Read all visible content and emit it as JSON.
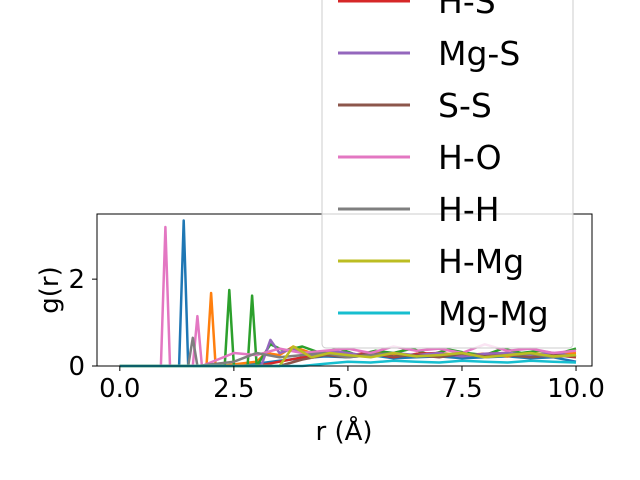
{
  "chart_data": {
    "type": "line",
    "xlabel": "r (Å)",
    "ylabel": "g(r)",
    "xlim": [
      -0.5,
      10.35
    ],
    "ylim": [
      0,
      3.5
    ],
    "xticks": [
      0.0,
      2.5,
      5.0,
      7.5,
      10.0
    ],
    "xtick_labels": [
      "0.0",
      "2.5",
      "5.0",
      "7.5",
      "10.0"
    ],
    "yticks": [
      0,
      2
    ],
    "ytick_labels": [
      "0",
      "2"
    ],
    "grid": false,
    "legend_placement": "top-right",
    "series": [
      {
        "name": "",
        "color": "#1f77b4",
        "in_legend": false,
        "x": [
          0.0,
          1.2,
          1.3,
          1.4,
          1.5,
          1.6,
          2.0,
          3.0,
          3.5,
          4.0,
          4.5,
          5.0,
          5.5,
          6.0,
          6.5,
          7.0,
          7.5,
          8.0,
          8.5,
          9.0,
          9.5,
          10.0
        ],
        "values": [
          0.0,
          0.0,
          0.0,
          3.35,
          0.0,
          0.0,
          0.0,
          0.05,
          0.12,
          0.18,
          0.22,
          0.2,
          0.25,
          0.18,
          0.2,
          0.22,
          0.18,
          0.2,
          0.22,
          0.18,
          0.2,
          0.1
        ]
      },
      {
        "name": "",
        "color": "#ff7f0e",
        "in_legend": false,
        "x": [
          0.0,
          1.9,
          2.0,
          2.1,
          2.2,
          3.0,
          3.2,
          3.5,
          3.8,
          4.2,
          4.6,
          5.0,
          5.5,
          6.0,
          6.5,
          7.0,
          7.5,
          8.0,
          8.5,
          9.0,
          9.5,
          10.0
        ],
        "values": [
          0.0,
          0.0,
          1.68,
          0.0,
          0.0,
          0.1,
          0.3,
          0.25,
          0.45,
          0.3,
          0.35,
          0.25,
          0.3,
          0.28,
          0.22,
          0.3,
          0.25,
          0.28,
          0.22,
          0.3,
          0.25,
          0.3
        ]
      },
      {
        "name": "",
        "color": "#2ca02c",
        "in_legend": false,
        "x": [
          0.0,
          2.3,
          2.4,
          2.5,
          2.8,
          2.9,
          3.0,
          3.3,
          3.6,
          4.0,
          4.4,
          4.8,
          5.2,
          5.6,
          6.0,
          6.4,
          6.8,
          7.2,
          7.6,
          8.0,
          8.4,
          8.8,
          9.2,
          9.6,
          10.0
        ],
        "values": [
          0.0,
          0.0,
          1.75,
          0.0,
          0.0,
          1.62,
          0.0,
          0.5,
          0.35,
          0.45,
          0.3,
          0.4,
          0.25,
          0.35,
          0.3,
          0.4,
          0.25,
          0.38,
          0.3,
          0.25,
          0.4,
          0.3,
          0.35,
          0.28,
          0.4
        ]
      },
      {
        "name": "H-S",
        "color": "#d62728",
        "in_legend": true,
        "x": [
          0.0,
          3.0,
          3.5,
          4.0,
          4.5,
          5.0,
          5.5,
          6.0,
          6.5,
          7.0,
          7.5,
          8.0,
          8.5,
          9.0,
          9.5,
          10.0
        ],
        "values": [
          0.0,
          0.0,
          0.1,
          0.2,
          0.3,
          0.25,
          0.3,
          0.2,
          0.28,
          0.3,
          0.22,
          0.28,
          0.3,
          0.2,
          0.25,
          0.2
        ]
      },
      {
        "name": "Mg-S",
        "color": "#9467bd",
        "in_legend": true,
        "x": [
          0.0,
          3.1,
          3.3,
          3.5,
          3.8,
          4.2,
          4.6,
          5.0,
          5.5,
          6.0,
          6.5,
          7.0,
          7.5,
          8.0,
          8.5,
          9.0,
          9.5,
          10.0
        ],
        "values": [
          0.0,
          0.0,
          0.6,
          0.3,
          0.4,
          0.25,
          0.35,
          0.3,
          0.22,
          0.3,
          0.25,
          0.3,
          0.22,
          0.28,
          0.3,
          0.25,
          0.3,
          0.22
        ]
      },
      {
        "name": "S-S",
        "color": "#8c564b",
        "in_legend": true,
        "x": [
          0.0,
          3.5,
          4.0,
          4.5,
          5.0,
          5.5,
          6.0,
          6.5,
          7.0,
          7.5,
          8.0,
          8.5,
          9.0,
          9.5,
          10.0
        ],
        "values": [
          0.0,
          0.0,
          0.15,
          0.25,
          0.2,
          0.3,
          0.22,
          0.25,
          0.2,
          0.28,
          0.22,
          0.25,
          0.2,
          0.25,
          0.22
        ]
      },
      {
        "name": "H-O",
        "color": "#e377c2",
        "in_legend": true,
        "x": [
          0.0,
          0.9,
          1.0,
          1.1,
          1.6,
          1.7,
          1.8,
          2.5,
          3.0,
          3.5,
          4.0,
          4.5,
          5.0,
          5.5,
          6.0,
          6.5,
          7.0,
          7.5,
          8.0,
          8.5,
          9.0,
          9.5,
          10.0
        ],
        "values": [
          0.0,
          0.0,
          3.2,
          0.0,
          0.0,
          1.15,
          0.0,
          0.3,
          0.25,
          0.4,
          0.3,
          0.35,
          0.4,
          0.3,
          0.45,
          0.35,
          0.4,
          0.3,
          0.5,
          0.35,
          0.4,
          0.3,
          0.35
        ]
      },
      {
        "name": "H-H",
        "color": "#7f7f7f",
        "in_legend": true,
        "x": [
          0.0,
          1.5,
          1.6,
          1.7,
          2.5,
          3.0,
          3.5,
          4.0,
          4.5,
          5.0,
          5.5,
          6.0,
          6.5,
          7.0,
          7.5,
          8.0,
          8.5,
          9.0,
          9.5,
          10.0
        ],
        "values": [
          0.0,
          0.0,
          0.65,
          0.0,
          0.1,
          0.3,
          0.2,
          0.25,
          0.3,
          0.2,
          0.25,
          0.3,
          0.22,
          0.25,
          0.3,
          0.2,
          0.25,
          0.28,
          0.2,
          0.25
        ]
      },
      {
        "name": "H-Mg",
        "color": "#bcbd22",
        "in_legend": true,
        "x": [
          0.0,
          3.5,
          3.8,
          4.2,
          4.6,
          5.0,
          5.5,
          6.0,
          6.5,
          7.0,
          7.5,
          8.0,
          8.5,
          9.0,
          9.5,
          10.0
        ],
        "values": [
          0.0,
          0.0,
          0.45,
          0.2,
          0.3,
          0.25,
          0.2,
          0.3,
          0.22,
          0.25,
          0.3,
          0.2,
          0.25,
          0.3,
          0.22,
          0.25
        ]
      },
      {
        "name": "Mg-Mg",
        "color": "#17becf",
        "in_legend": true,
        "x": [
          0.0,
          4.0,
          4.5,
          5.0,
          5.5,
          6.0,
          6.5,
          7.0,
          7.5,
          8.0,
          8.5,
          9.0,
          9.5,
          10.0
        ],
        "values": [
          0.0,
          0.0,
          0.05,
          0.1,
          0.08,
          0.12,
          0.1,
          0.08,
          0.12,
          0.1,
          0.08,
          0.12,
          0.1,
          0.08
        ]
      }
    ]
  }
}
